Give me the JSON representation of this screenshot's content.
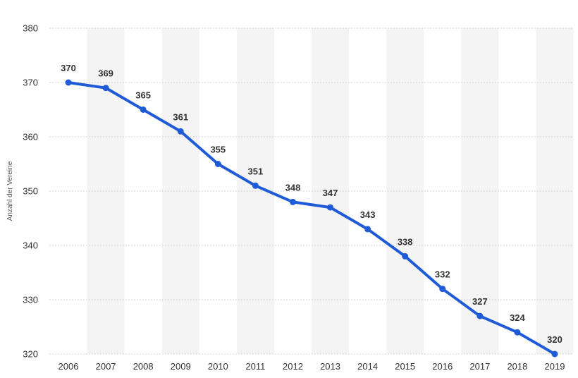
{
  "chart_data": {
    "type": "line",
    "title": "",
    "xlabel": "",
    "ylabel": "Anzahl der Vereine",
    "ylim": [
      320,
      380
    ],
    "yticks": [
      320,
      330,
      340,
      350,
      360,
      370,
      380
    ],
    "categories": [
      "2006",
      "2007",
      "2008",
      "2009",
      "2010",
      "2011",
      "2012",
      "2013",
      "2014",
      "2015",
      "2016",
      "2017",
      "2018",
      "2019"
    ],
    "series": [
      {
        "values": [
          370,
          369,
          365,
          361,
          355,
          351,
          348,
          347,
          343,
          338,
          332,
          327,
          324,
          320
        ]
      }
    ],
    "grid": "horizontal dotted lines with alternating shaded columns",
    "line_color": "#1f5bd6",
    "band_color": "#f4f4f4",
    "grid_color": "#c8c8c8"
  }
}
